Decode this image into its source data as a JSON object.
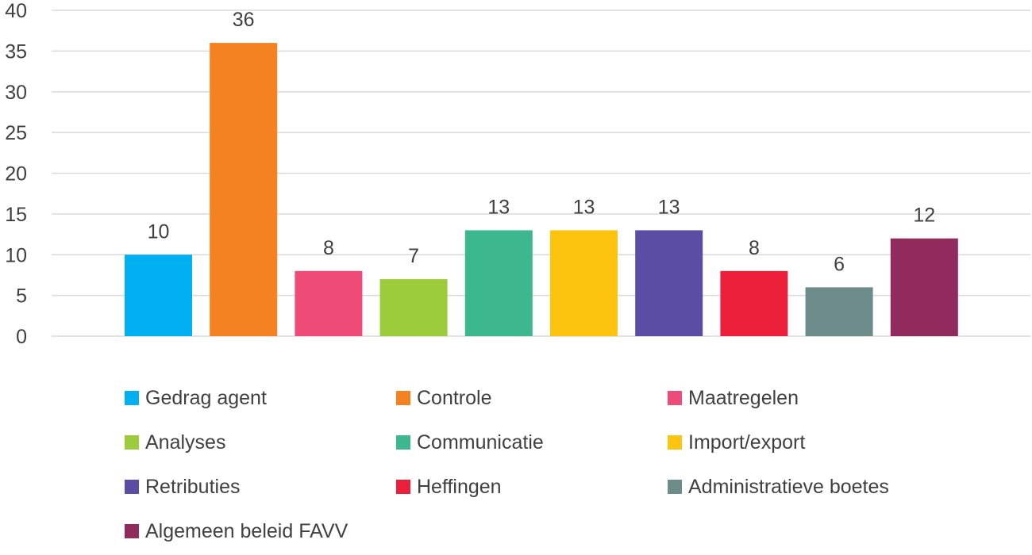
{
  "chart_data": {
    "type": "bar",
    "title": "",
    "xlabel": "",
    "ylabel": "",
    "ylim": [
      0,
      40
    ],
    "yticks": [
      0,
      5,
      10,
      15,
      20,
      25,
      30,
      35,
      40
    ],
    "grid": true,
    "legend_position": "bottom",
    "categories": [
      "Gedrag agent",
      "Controle",
      "Maatregelen",
      "Analyses",
      "Communicatie",
      "Import/export",
      "Retributies",
      "Heffingen",
      "Administratieve boetes",
      "Algemeen beleid FAVV"
    ],
    "values": [
      10,
      36,
      8,
      7,
      13,
      13,
      13,
      8,
      6,
      12
    ],
    "colors": [
      "#00b0f0",
      "#f58220",
      "#ef4b78",
      "#9ccc3b",
      "#3db88e",
      "#fdc40f",
      "#5a4da3",
      "#eb1f3a",
      "#6c8b8a",
      "#922b5d"
    ]
  }
}
